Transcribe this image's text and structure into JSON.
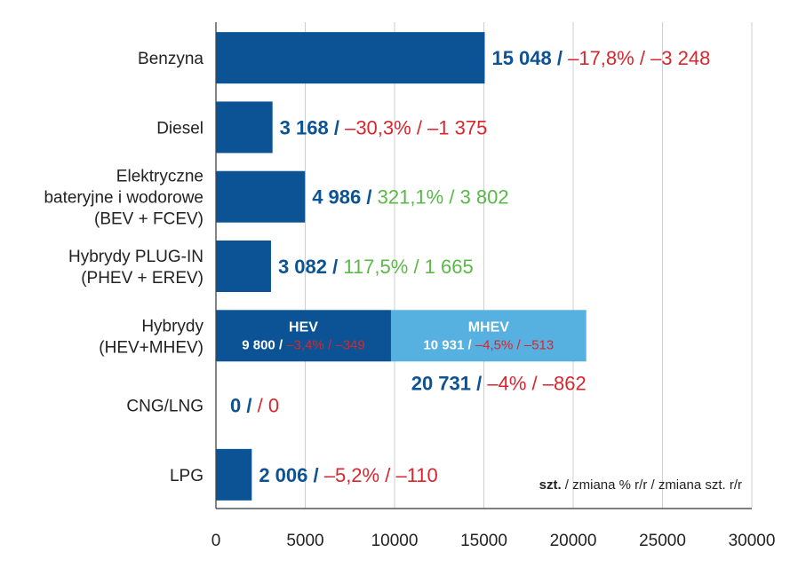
{
  "chart_data": {
    "type": "bar",
    "orientation": "horizontal",
    "xlim": [
      0,
      30000
    ],
    "x_ticks": [
      "0",
      "5000",
      "10000",
      "15000",
      "20000",
      "25000",
      "30000"
    ],
    "grid": true,
    "note": {
      "bold": "szt.",
      "rest": " / zmiana % r/r / zmiana szt. r/r"
    },
    "colors": {
      "primary": "#0b5394",
      "secondary": "#56b0e0",
      "negative": "#d9262e",
      "positive": "#5ab848"
    },
    "categories": [
      {
        "label": [
          "Benzyna"
        ],
        "value": 15048,
        "value_text": "15 048",
        "pct": "–17,8%",
        "change": "–3 248",
        "trend": "negative"
      },
      {
        "label": [
          "Diesel"
        ],
        "value": 3168,
        "value_text": "3 168",
        "pct": "–30,3%",
        "change": "–1 375",
        "trend": "negative"
      },
      {
        "label": [
          "Elektryczne",
          "bateryjne i wodorowe",
          "(BEV + FCEV)"
        ],
        "value": 4986,
        "value_text": "4 986",
        "pct": "321,1%",
        "change": "3 802",
        "trend": "positive"
      },
      {
        "label": [
          "Hybrydy PLUG-IN",
          "(PHEV + EREV)"
        ],
        "value": 3082,
        "value_text": "3 082",
        "pct": "117,5%",
        "change": "1 665",
        "trend": "positive"
      },
      {
        "label": [
          "Hybrydy",
          "(HEV+MHEV)"
        ],
        "value": 20731,
        "value_text": "20 731",
        "pct": "–4%",
        "change": "–862",
        "trend": "negative",
        "segments": [
          {
            "name": "HEV",
            "value": 9800,
            "value_text": "9 800",
            "pct": "–3,4%",
            "change": "–349"
          },
          {
            "name": "MHEV",
            "value": 10931,
            "value_text": "10 931",
            "pct": "–4,5%",
            "change": "–513"
          }
        ]
      },
      {
        "label": [
          "CNG/LNG"
        ],
        "value": 0,
        "value_text": "0",
        "pct": "",
        "change": "0",
        "trend": "negative"
      },
      {
        "label": [
          "LPG"
        ],
        "value": 2006,
        "value_text": "2 006",
        "pct": "–5,2%",
        "change": "–110",
        "trend": "negative"
      }
    ]
  }
}
